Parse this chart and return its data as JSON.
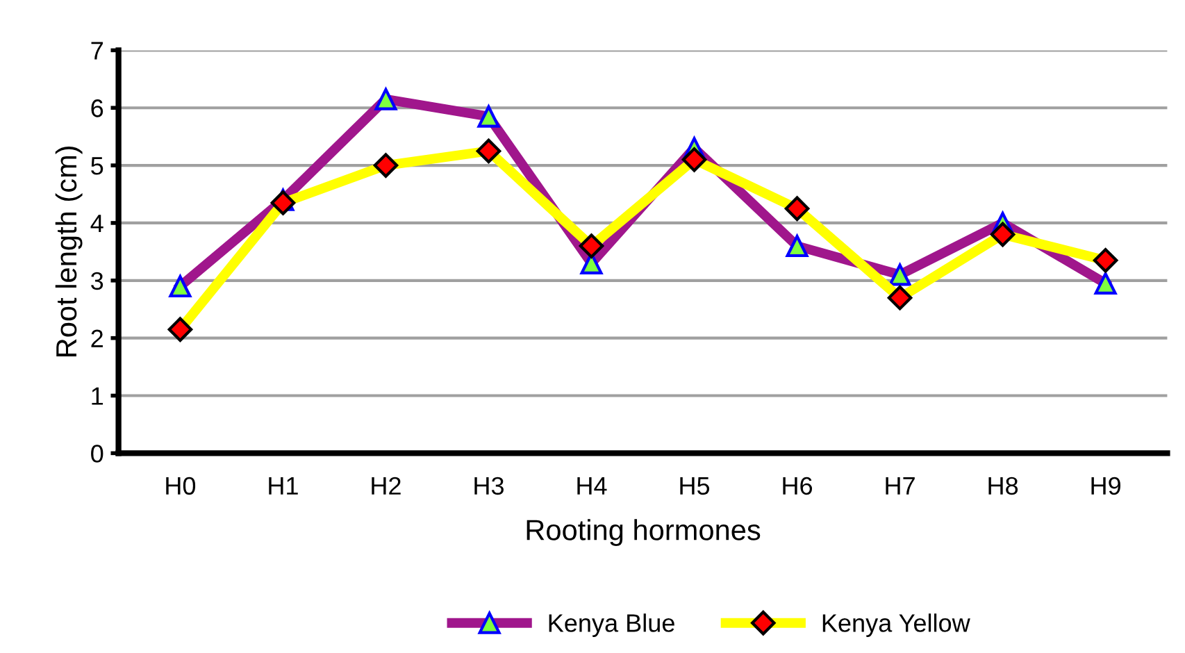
{
  "chart_data": {
    "type": "line",
    "xlabel": "Rooting hormones",
    "ylabel": "Root length (cm)",
    "categories": [
      "H0",
      "H1",
      "H2",
      "H3",
      "H4",
      "H5",
      "H6",
      "H7",
      "H8",
      "H9"
    ],
    "series": [
      {
        "name": "Kenya Blue",
        "color": "#a0168c",
        "marker": "triangle",
        "values": [
          2.9,
          4.4,
          6.15,
          5.85,
          3.3,
          5.3,
          3.6,
          3.1,
          4.0,
          2.95
        ]
      },
      {
        "name": "Kenya Yellow",
        "color": "#ffff00",
        "marker": "diamond",
        "values": [
          2.15,
          4.35,
          5.0,
          5.25,
          3.6,
          5.1,
          4.25,
          2.7,
          3.8,
          3.35
        ]
      }
    ],
    "ylim": [
      0,
      7
    ],
    "yticks": [
      0,
      1,
      2,
      3,
      4,
      5,
      6,
      7
    ],
    "grid": "y",
    "legend": "bottom",
    "line_style": "solid"
  }
}
